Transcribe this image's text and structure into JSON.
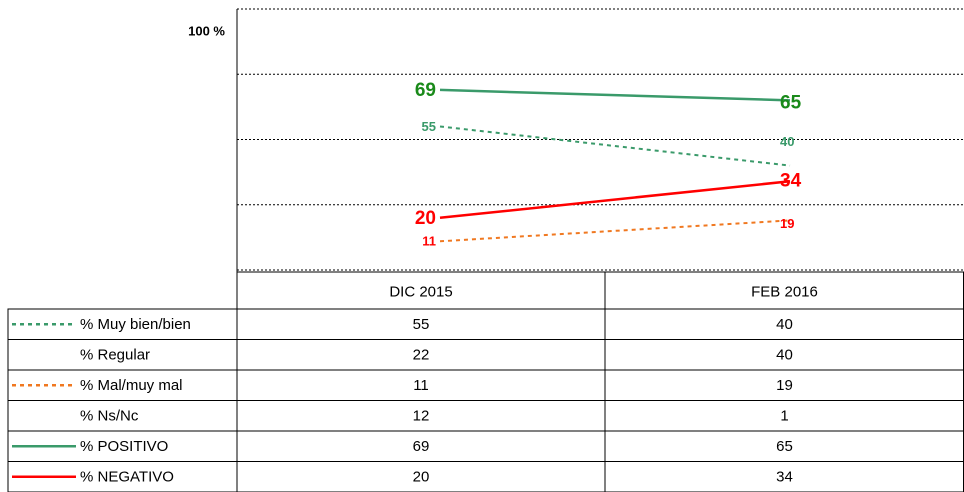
{
  "chart_data": {
    "type": "line",
    "categories": [
      "DIC 2015",
      "FEB 2016"
    ],
    "ylim": [
      0,
      100
    ],
    "yticks": [
      {
        "value": 100,
        "label": "100 %"
      }
    ],
    "grid_values": [
      0,
      25,
      50,
      75,
      100
    ],
    "series": [
      {
        "name": "% Muy bien/bien",
        "values": [
          55,
          40
        ],
        "color": "#3a9a6a",
        "label_color": "#3a9a6a",
        "dashed": true,
        "plotted": true,
        "label_size": "small"
      },
      {
        "name": "% Regular",
        "values": [
          22,
          40
        ],
        "plotted": false
      },
      {
        "name": "% Mal/muy mal",
        "values": [
          11,
          19
        ],
        "color": "#f07820",
        "label_color": "#ff0000",
        "dashed": true,
        "plotted": true,
        "label_size": "small"
      },
      {
        "name": "% Ns/Nc",
        "values": [
          12,
          1
        ],
        "plotted": false
      },
      {
        "name": "% POSITIVO",
        "values": [
          69,
          65
        ],
        "color": "#3a9a6a",
        "label_color": "#1a8a1a",
        "dashed": false,
        "plotted": true,
        "label_size": "large"
      },
      {
        "name": "% NEGATIVO",
        "values": [
          20,
          34
        ],
        "color": "#ff0000",
        "label_color": "#ff0000",
        "dashed": false,
        "plotted": true,
        "label_size": "large"
      }
    ]
  }
}
